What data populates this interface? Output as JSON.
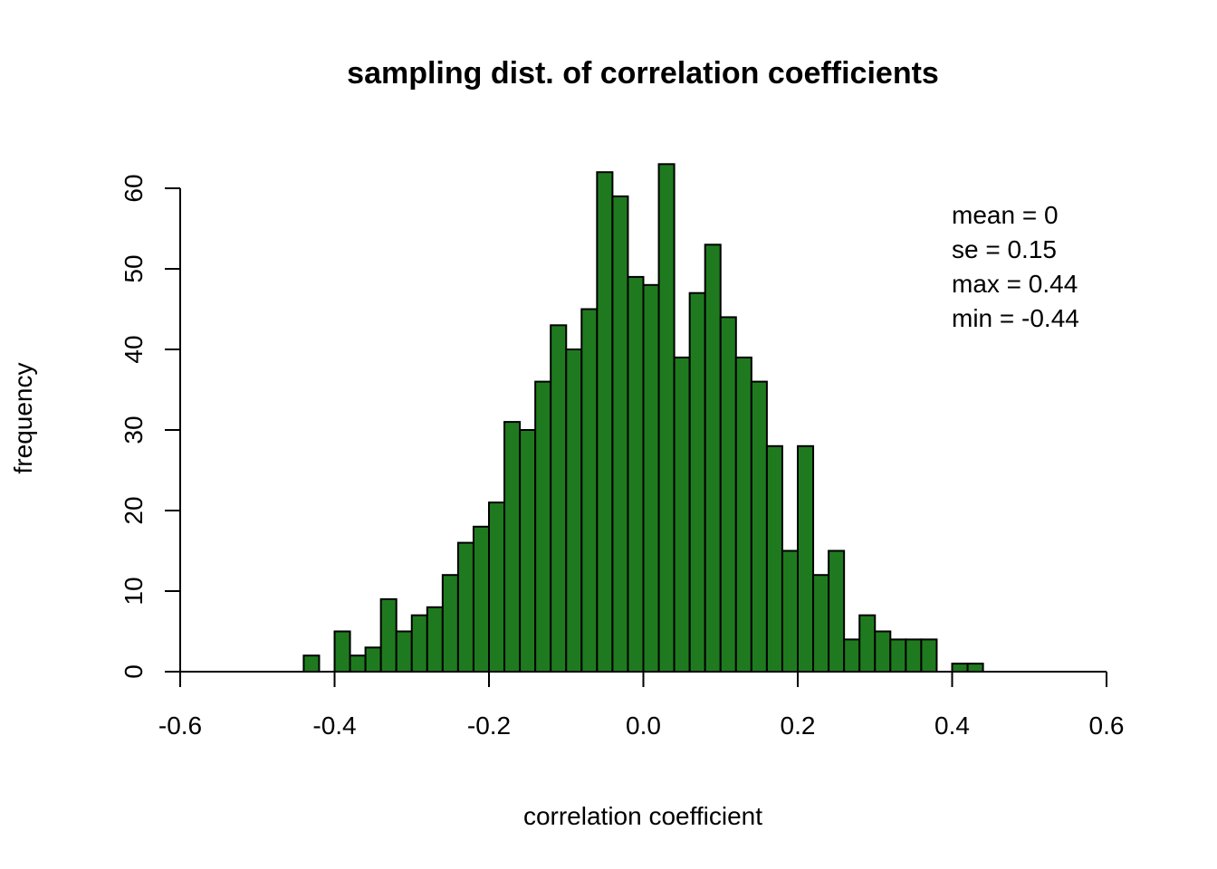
{
  "chart_data": {
    "type": "bar",
    "title": "sampling dist. of correlation coefficients",
    "xlabel": "correlation coefficient",
    "ylabel": "frequency",
    "xlim": [
      -0.6,
      0.6
    ],
    "ylim": [
      0,
      63
    ],
    "x_ticks": [
      "-0.6",
      "-0.4",
      "-0.2",
      "0.0",
      "0.2",
      "0.4",
      "0.6"
    ],
    "y_ticks": [
      "0",
      "10",
      "20",
      "30",
      "40",
      "50",
      "60"
    ],
    "bin_width": 0.02,
    "bins_start": [
      -0.44,
      -0.42,
      -0.4,
      -0.38,
      -0.36,
      -0.34,
      -0.32,
      -0.3,
      -0.28,
      -0.26,
      -0.24,
      -0.22,
      -0.2,
      -0.18,
      -0.16,
      -0.14,
      -0.12,
      -0.1,
      -0.08,
      -0.06,
      -0.04,
      -0.02,
      0.0,
      0.02,
      0.04,
      0.06,
      0.08,
      0.1,
      0.12,
      0.14,
      0.16,
      0.18,
      0.2,
      0.22,
      0.24,
      0.26,
      0.28,
      0.3,
      0.32,
      0.34,
      0.36,
      0.38,
      0.4,
      0.42
    ],
    "values": [
      2,
      0,
      5,
      2,
      3,
      9,
      5,
      7,
      8,
      12,
      16,
      18,
      21,
      31,
      30,
      36,
      43,
      40,
      45,
      62,
      59,
      49,
      48,
      63,
      39,
      47,
      53,
      44,
      39,
      36,
      28,
      15,
      28,
      12,
      15,
      4,
      7,
      5,
      4,
      4,
      4,
      0,
      1,
      1
    ],
    "bar_color": "#1f7a1f",
    "bar_edge_color": "#000000",
    "grid": false,
    "annotations": [
      "mean = 0",
      "se = 0.15",
      "max = 0.44",
      "min = -0.44"
    ],
    "annotation_placement": "top-right"
  }
}
